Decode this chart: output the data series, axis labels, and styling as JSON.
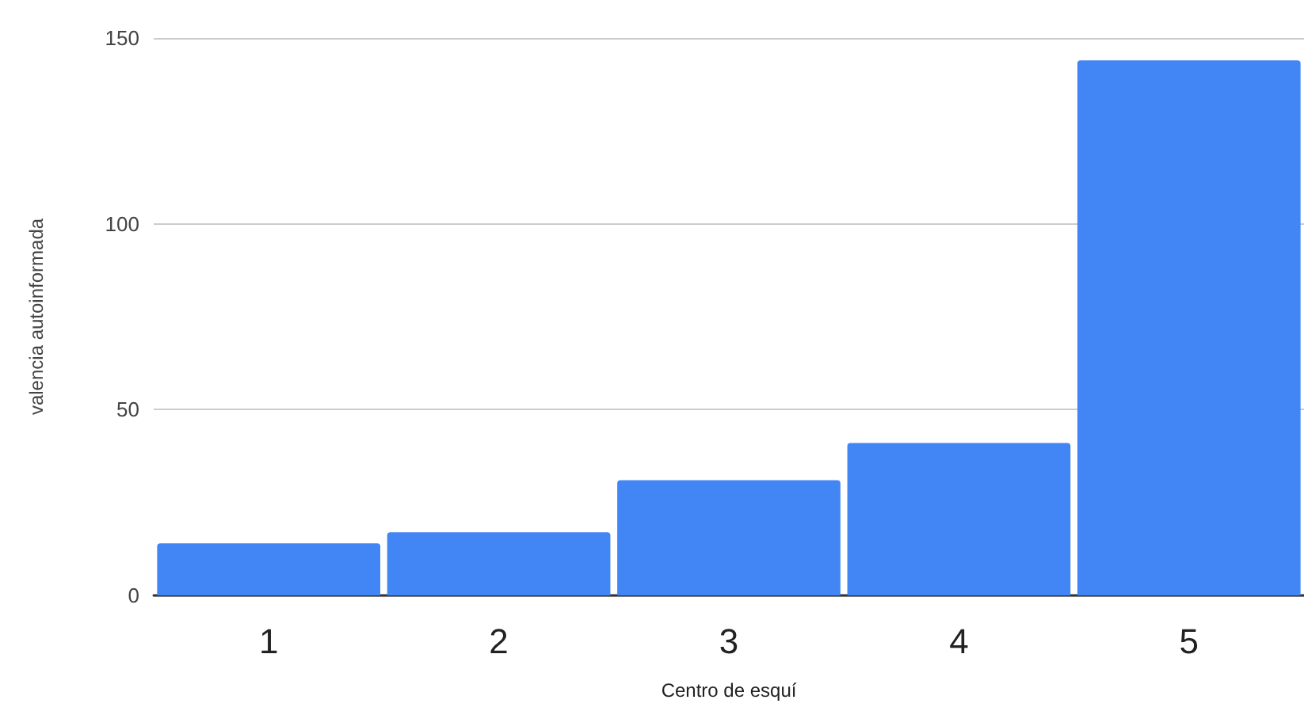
{
  "chart_data": {
    "type": "bar",
    "xlabel": "Centro de esquí",
    "ylabel": "valencia autoinformada",
    "categories": [
      "1",
      "2",
      "3",
      "4",
      "5"
    ],
    "values": [
      14,
      17,
      31,
      41,
      144
    ],
    "color": "#4285f4",
    "ylim": [
      0,
      150
    ],
    "yticks": [
      0,
      50,
      100,
      150
    ],
    "grid": "y"
  }
}
